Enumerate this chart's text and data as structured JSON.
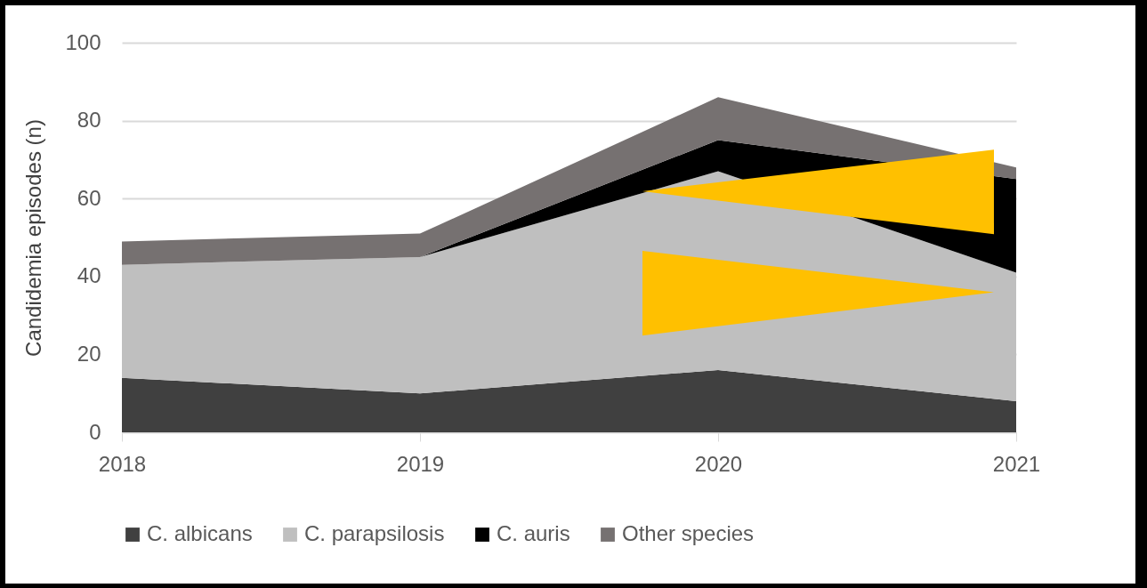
{
  "chart_data": {
    "type": "area",
    "stacked": true,
    "ylabel": "Candidemia episodes (n)",
    "categories": [
      "2018",
      "2019",
      "2020",
      "2021"
    ],
    "series": [
      {
        "name": "C. albicans",
        "color": "#404040",
        "values": [
          14,
          10,
          16,
          8
        ]
      },
      {
        "name": "C. parapsilosis",
        "color": "#bfbfbf",
        "values": [
          29,
          35,
          51,
          33
        ]
      },
      {
        "name": "C. auris",
        "color": "#000000",
        "values": [
          0,
          0,
          8,
          24
        ]
      },
      {
        "name": "Other species",
        "color": "#767171",
        "values": [
          6,
          6,
          11,
          3
        ]
      }
    ],
    "ylim": [
      0,
      100
    ],
    "yticks": [
      0,
      20,
      40,
      60,
      80,
      100
    ],
    "grid": "y",
    "legend": "bottom"
  }
}
